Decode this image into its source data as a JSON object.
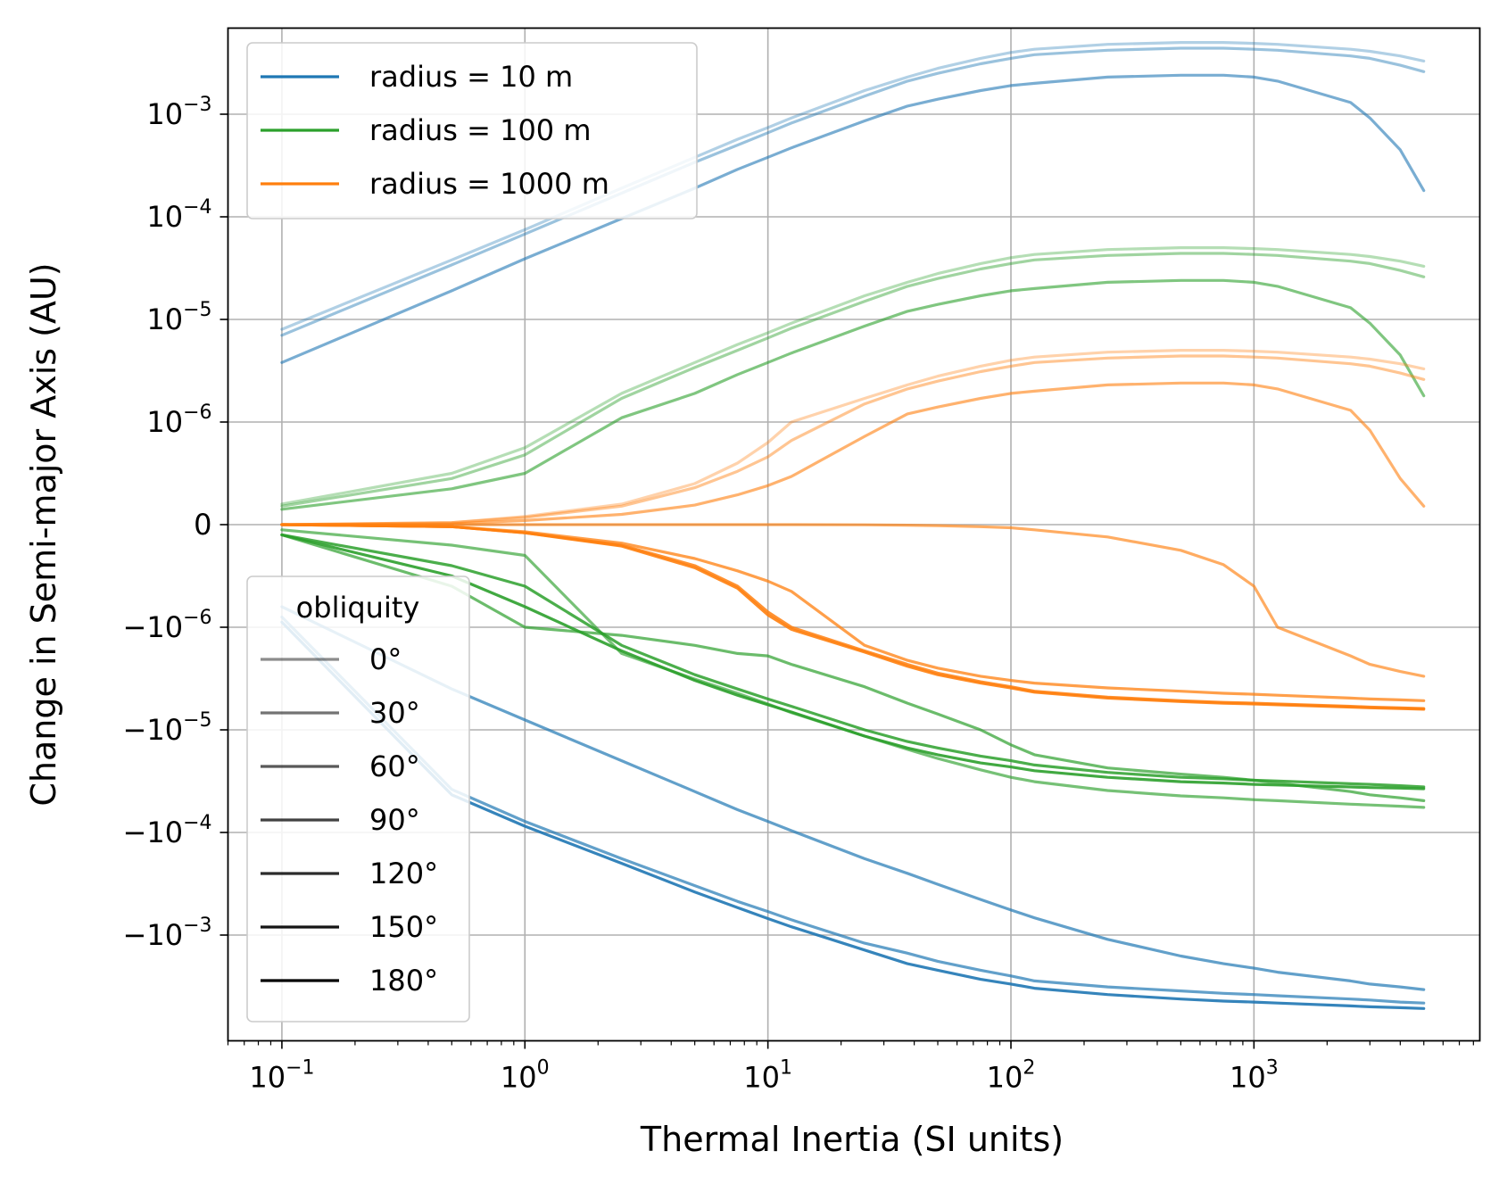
{
  "chart_data": {
    "type": "line",
    "xlabel": "Thermal Inertia (SI units)",
    "ylabel": "Change in Semi-major Axis (AU)",
    "xscale": "log",
    "yscale": "symlog",
    "xlim": [
      0.06,
      8500
    ],
    "x_ticks": [
      {
        "value": 0.1,
        "base": "10",
        "exp": "−1"
      },
      {
        "value": 1,
        "base": "10",
        "exp": "0"
      },
      {
        "value": 10,
        "base": "10",
        "exp": "1"
      },
      {
        "value": 100,
        "base": "10",
        "exp": "2"
      },
      {
        "value": 1000,
        "base": "10",
        "exp": "3"
      }
    ],
    "y_ticks": [
      {
        "value": 0.001,
        "label": "10",
        "exp": "−3"
      },
      {
        "value": 0.0001,
        "label": "10",
        "exp": "−4"
      },
      {
        "value": 1e-05,
        "label": "10",
        "exp": "−5"
      },
      {
        "value": 1e-06,
        "label": "10",
        "exp": "−6"
      },
      {
        "value": 0,
        "label": "0",
        "exp": ""
      },
      {
        "value": -1e-06,
        "label": "−10",
        "exp": "−6"
      },
      {
        "value": -1e-05,
        "label": "−10",
        "exp": "−5"
      },
      {
        "value": -0.0001,
        "label": "−10",
        "exp": "−4"
      },
      {
        "value": -0.001,
        "label": "−10",
        "exp": "−3"
      }
    ],
    "grid": true,
    "x": [
      0.1,
      0.5,
      1,
      2.5,
      5,
      7.5,
      10,
      12.5,
      25,
      37.5,
      50,
      75,
      100,
      125,
      250,
      500,
      750,
      1000,
      1250,
      2500,
      3000,
      4000,
      5000
    ],
    "legends": {
      "radius": {
        "placement": "top-left",
        "entries": [
          {
            "label": "radius = 10 m",
            "color": "#1f77b4"
          },
          {
            "label": "radius = 100 m",
            "color": "#2ca02c"
          },
          {
            "label": "radius = 1000 m",
            "color": "#ff7f0e"
          }
        ]
      },
      "obliquity": {
        "title": "obliquity",
        "placement": "lower-left",
        "entries": [
          {
            "label": "0°",
            "opacity": 0.45
          },
          {
            "label": "30°",
            "opacity": 0.55
          },
          {
            "label": "60°",
            "opacity": 0.65
          },
          {
            "label": "90°",
            "opacity": 0.74
          },
          {
            "label": "120°",
            "opacity": 0.83
          },
          {
            "label": "150°",
            "opacity": 0.92
          },
          {
            "label": "180°",
            "opacity": 1.0
          }
        ]
      }
    },
    "series": [
      {
        "radius": "10 m",
        "obliquity": "0°",
        "color": "#1f77b4",
        "opacity": 0.35,
        "y": [
          8e-06,
          3.8e-05,
          7.5e-05,
          0.00019,
          0.00038,
          0.00057,
          0.00074,
          0.00092,
          0.0017,
          0.0023,
          0.0028,
          0.0035,
          0.004,
          0.0043,
          0.0048,
          0.005,
          0.005,
          0.0049,
          0.0048,
          0.0043,
          0.0041,
          0.0037,
          0.0033
        ]
      },
      {
        "radius": "10 m",
        "obliquity": "30°",
        "color": "#1f77b4",
        "opacity": 0.45,
        "y": [
          7e-06,
          3.4e-05,
          6.8e-05,
          0.00017,
          0.00034,
          0.0005,
          0.00066,
          0.00082,
          0.0015,
          0.0021,
          0.0025,
          0.0031,
          0.0035,
          0.0038,
          0.0042,
          0.0044,
          0.0044,
          0.0043,
          0.0042,
          0.0037,
          0.0035,
          0.003,
          0.0026
        ]
      },
      {
        "radius": "10 m",
        "obliquity": "60°",
        "color": "#1f77b4",
        "opacity": 0.6,
        "y": [
          3.8e-06,
          1.9e-05,
          3.9e-05,
          9.6e-05,
          0.00019,
          0.00029,
          0.00038,
          0.00047,
          0.00086,
          0.0012,
          0.0014,
          0.0017,
          0.0019,
          0.002,
          0.0023,
          0.0024,
          0.0024,
          0.0023,
          0.0021,
          0.0013,
          0.00092,
          0.00045,
          0.00018
        ]
      },
      {
        "radius": "10 m",
        "obliquity": "120°",
        "color": "#1f77b4",
        "opacity": 0.7,
        "y": [
          -8e-07,
          -4e-06,
          -8e-06,
          -2e-05,
          -4e-05,
          -6e-05,
          -7.8e-05,
          -9.6e-05,
          -0.00018,
          -0.00025,
          -0.00032,
          -0.00045,
          -0.00057,
          -0.00068,
          -0.0011,
          -0.0016,
          -0.0019,
          -0.0021,
          -0.0023,
          -0.0028,
          -0.003,
          -0.0032,
          -0.0034
        ]
      },
      {
        "radius": "10 m",
        "obliquity": "150°",
        "color": "#1f77b4",
        "opacity": 0.7,
        "y": [
          -9e-07,
          -3.8e-05,
          -7.8e-05,
          -0.00018,
          -0.00033,
          -0.00047,
          -0.00059,
          -0.00071,
          -0.0012,
          -0.0015,
          -0.0018,
          -0.0022,
          -0.0025,
          -0.0028,
          -0.0032,
          -0.0035,
          -0.0037,
          -0.0038,
          -0.0039,
          -0.0042,
          -0.0043,
          -0.0045,
          -0.0046
        ]
      },
      {
        "radius": "10 m",
        "obliquity": "180°",
        "color": "#1f77b4",
        "opacity": 0.9,
        "y": [
          -9.5e-07,
          -4.3e-05,
          -8.7e-05,
          -0.0002,
          -0.00038,
          -0.00054,
          -0.00069,
          -0.00083,
          -0.0014,
          -0.0019,
          -0.0022,
          -0.0027,
          -0.003,
          -0.0033,
          -0.0038,
          -0.0042,
          -0.0044,
          -0.0045,
          -0.0046,
          -0.0049,
          -0.005,
          -0.0051,
          -0.0052
        ]
      },
      {
        "radius": "100 m",
        "obliquity": "0°",
        "color": "#2ca02c",
        "opacity": 0.35,
        "y": [
          2e-07,
          5e-07,
          7.5e-07,
          1.9e-06,
          3.8e-06,
          5.7e-06,
          7.4e-06,
          9.2e-06,
          1.7e-05,
          2.3e-05,
          2.8e-05,
          3.5e-05,
          4e-05,
          4.3e-05,
          4.8e-05,
          5e-05,
          5e-05,
          4.9e-05,
          4.8e-05,
          4.3e-05,
          4.1e-05,
          3.7e-05,
          3.3e-05
        ]
      },
      {
        "radius": "100 m",
        "obliquity": "30°",
        "color": "#2ca02c",
        "opacity": 0.45,
        "y": [
          1.8e-07,
          4.5e-07,
          6.8e-07,
          1.7e-06,
          3.4e-06,
          5e-06,
          6.6e-06,
          8.2e-06,
          1.5e-05,
          2.1e-05,
          2.5e-05,
          3.1e-05,
          3.5e-05,
          3.8e-05,
          4.2e-05,
          4.4e-05,
          4.4e-05,
          4.3e-05,
          4.2e-05,
          3.7e-05,
          3.5e-05,
          3e-05,
          2.6e-05
        ]
      },
      {
        "radius": "100 m",
        "obliquity": "60°",
        "color": "#2ca02c",
        "opacity": 0.6,
        "y": [
          1.5e-07,
          3.5e-07,
          5e-07,
          1.1e-06,
          1.9e-06,
          2.9e-06,
          3.8e-06,
          4.7e-06,
          8.6e-06,
          1.2e-05,
          1.4e-05,
          1.7e-05,
          1.9e-05,
          2e-05,
          2.3e-05,
          2.4e-05,
          2.4e-05,
          2.3e-05,
          2.1e-05,
          1.3e-05,
          9.2e-06,
          4.5e-06,
          1.8e-06
        ]
      },
      {
        "radius": "100 m",
        "obliquity": "90°",
        "color": "#2ca02c",
        "opacity": 0.65,
        "y": [
          -5e-08,
          -2e-07,
          -3e-07,
          -1.8e-06,
          -3.2e-06,
          -4.4e-06,
          -5.6e-06,
          -6.8e-06,
          -1.15e-05,
          -1.55e-05,
          -1.9e-05,
          -2.45e-05,
          -2.9e-05,
          -3.2e-05,
          -3.9e-05,
          -4.4e-05,
          -4.6e-05,
          -4.8e-05,
          -4.9e-05,
          -5.3e-05,
          -5.4e-05,
          -5.55e-05,
          -5.7e-05
        ]
      },
      {
        "radius": "100 m",
        "obliquity": "120°",
        "color": "#2ca02c",
        "opacity": 0.7,
        "y": [
          -1e-07,
          -6e-07,
          -1e-06,
          -1.2e-06,
          -1.5e-06,
          -1.8e-06,
          -1.9e-06,
          -2.3e-06,
          -3.8e-06,
          -5.5e-06,
          -7e-06,
          -1e-05,
          -1.4e-05,
          -1.75e-05,
          -2.35e-05,
          -2.7e-05,
          -2.9e-05,
          -3.1e-05,
          -3.3e-05,
          -4e-05,
          -4.3e-05,
          -4.6e-05,
          -4.9e-05
        ]
      },
      {
        "radius": "100 m",
        "obliquity": "150°",
        "color": "#2ca02c",
        "opacity": 0.85,
        "y": [
          -1e-07,
          -4e-07,
          -6e-07,
          -1.5e-06,
          -2.9e-06,
          -4e-06,
          -5e-06,
          -5.9e-06,
          -1e-05,
          -1.3e-05,
          -1.5e-05,
          -1.8e-05,
          -2e-05,
          -2.2e-05,
          -2.6e-05,
          -2.9e-05,
          -3e-05,
          -3.1e-05,
          -3.15e-05,
          -3.35e-05,
          -3.4e-05,
          -3.5e-05,
          -3.6e-05
        ]
      },
      {
        "radius": "100 m",
        "obliquity": "180°",
        "color": "#2ca02c",
        "opacity": 0.9,
        "y": [
          -1e-07,
          -5e-07,
          -8e-07,
          -1.7e-06,
          -3.3e-06,
          -4.6e-06,
          -5.7e-06,
          -6.7e-06,
          -1.15e-05,
          -1.5e-05,
          -1.75e-05,
          -2.1e-05,
          -2.3e-05,
          -2.5e-05,
          -2.9e-05,
          -3.2e-05,
          -3.3e-05,
          -3.4e-05,
          -3.45e-05,
          -3.6e-05,
          -3.65e-05,
          -3.7e-05,
          -3.75e-05
        ]
      },
      {
        "radius": "1000 m",
        "obliquity": "0°",
        "color": "#ff7f0e",
        "opacity": 0.35,
        "y": [
          0,
          2e-08,
          8e-08,
          2e-07,
          4e-07,
          6e-07,
          8e-07,
          1e-06,
          1.7e-06,
          2.3e-06,
          2.8e-06,
          3.5e-06,
          4e-06,
          4.3e-06,
          4.8e-06,
          5e-06,
          5e-06,
          4.9e-06,
          4.8e-06,
          4.3e-06,
          4.1e-06,
          3.7e-06,
          3.3e-06
        ]
      },
      {
        "radius": "1000 m",
        "obliquity": "30°",
        "color": "#ff7f0e",
        "opacity": 0.45,
        "y": [
          0,
          2e-08,
          7e-08,
          1.8e-07,
          3.6e-07,
          5.2e-07,
          6.6e-07,
          8.2e-07,
          1.5e-06,
          2.1e-06,
          2.5e-06,
          3.1e-06,
          3.5e-06,
          3.8e-06,
          4.2e-06,
          4.4e-06,
          4.4e-06,
          4.3e-06,
          4.2e-06,
          3.7e-06,
          3.5e-06,
          3e-06,
          2.6e-06
        ]
      },
      {
        "radius": "1000 m",
        "obliquity": "60°",
        "color": "#ff7f0e",
        "opacity": 0.6,
        "y": [
          0,
          1e-08,
          4e-08,
          1e-07,
          1.9e-07,
          2.9e-07,
          3.8e-07,
          4.7e-07,
          8.6e-07,
          1.2e-06,
          1.4e-06,
          1.7e-06,
          1.9e-06,
          2e-06,
          2.3e-06,
          2.4e-06,
          2.4e-06,
          2.3e-06,
          2.1e-06,
          1.3e-06,
          9.2e-07,
          4.5e-07,
          1.8e-07
        ]
      },
      {
        "radius": "1000 m",
        "obliquity": "90°",
        "color": "#ff7f0e",
        "opacity": 0.65,
        "y": [
          0,
          0,
          0,
          0,
          0,
          0,
          0,
          0,
          -2e-09,
          -5e-09,
          -1e-08,
          -2e-08,
          -3e-08,
          -5e-08,
          -1.2e-07,
          -2.5e-07,
          -3.9e-07,
          -6e-07,
          -1e-06,
          -1.9e-06,
          -2.3e-06,
          -2.7e-06,
          -3e-06
        ]
      },
      {
        "radius": "1000 m",
        "obliquity": "120°",
        "color": "#ff7f0e",
        "opacity": 0.75,
        "y": [
          0,
          -2e-08,
          -7e-08,
          -1.8e-07,
          -3.3e-07,
          -4.5e-07,
          -5.5e-07,
          -6.5e-07,
          -1.5e-06,
          -2.1e-06,
          -2.5e-06,
          -3e-06,
          -3.3e-06,
          -3.5e-06,
          -3.9e-06,
          -4.2e-06,
          -4.4e-06,
          -4.5e-06,
          -4.6e-06,
          -4.9e-06,
          -5e-06,
          -5.1e-06,
          -5.2e-06
        ]
      },
      {
        "radius": "1000 m",
        "obliquity": "150°",
        "color": "#ff7f0e",
        "opacity": 0.85,
        "y": [
          0,
          -2e-08,
          -8e-08,
          -2e-07,
          -4e-07,
          -6e-07,
          -8.5e-07,
          -1e-06,
          -1.7e-06,
          -2.3e-06,
          -2.8e-06,
          -3.4e-06,
          -3.8e-06,
          -4.2e-06,
          -4.8e-06,
          -5.2e-06,
          -5.4e-06,
          -5.5e-06,
          -5.6e-06,
          -5.9e-06,
          -6e-06,
          -6.1e-06,
          -6.2e-06
        ]
      },
      {
        "radius": "1000 m",
        "obliquity": "180°",
        "color": "#ff7f0e",
        "opacity": 0.9,
        "y": [
          0,
          -2e-08,
          -8e-08,
          -2.1e-07,
          -4.2e-07,
          -6.2e-07,
          -8.8e-07,
          -1.05e-06,
          -1.75e-06,
          -2.4e-06,
          -2.9e-06,
          -3.5e-06,
          -3.9e-06,
          -4.3e-06,
          -4.9e-06,
          -5.3e-06,
          -5.5e-06,
          -5.6e-06,
          -5.7e-06,
          -6e-06,
          -6.1e-06,
          -6.2e-06,
          -6.3e-06
        ]
      }
    ]
  }
}
